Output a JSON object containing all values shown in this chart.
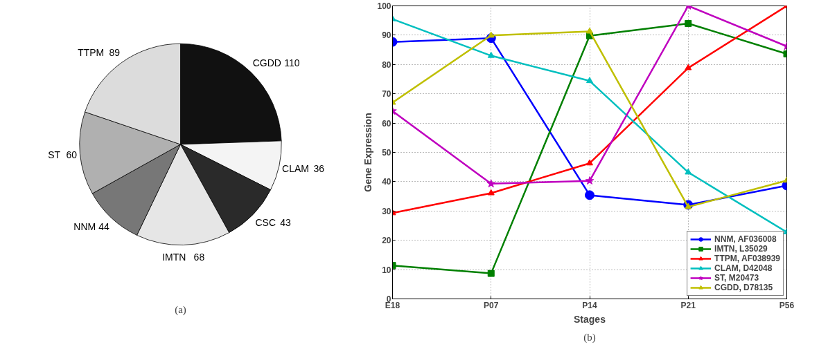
{
  "chart_data": [
    {
      "type": "pie",
      "categories": [
        "CGDD",
        "CLAM",
        "CSC",
        "IMTN",
        "NNM",
        "ST",
        "TTPM"
      ],
      "values": [
        110,
        36,
        43,
        68,
        44,
        60,
        89
      ],
      "colors": [
        "#111111",
        "#f4f4f4",
        "#2a2a2a",
        "#e6e6e6",
        "#777777",
        "#b0b0b0",
        "#dcdcdc"
      ],
      "data_labels": true,
      "legend": false,
      "annotations": [
        "(a)"
      ]
    },
    {
      "type": "line",
      "categories": [
        "E18",
        "P07",
        "P14",
        "P21",
        "P56"
      ],
      "xlabel": "Stages",
      "ylabel": "Gene Expression",
      "ylim": [
        0,
        100
      ],
      "yticks": [
        0,
        10,
        20,
        30,
        40,
        50,
        60,
        70,
        80,
        90,
        100
      ],
      "grid": true,
      "legend": "bottom right",
      "line_style": "solid",
      "series": [
        {
          "name": "NNM, AF036008",
          "color": "#0000ff",
          "marker": "circle",
          "values": [
            87.7,
            89,
            35.4,
            32.1,
            38.7
          ]
        },
        {
          "name": "IMTN, L35029",
          "color": "#008000",
          "marker": "square",
          "values": [
            11.4,
            8.7,
            89.8,
            94,
            83.6
          ]
        },
        {
          "name": "TTPM, AF038939",
          "color": "#ff0000",
          "marker": "triangle",
          "values": [
            29.3,
            36.1,
            46.3,
            78.8,
            100
          ]
        },
        {
          "name": "CLAM, D42048",
          "color": "#00bfbf",
          "marker": "triangle",
          "values": [
            95.5,
            83,
            74.4,
            43.2,
            22.8
          ]
        },
        {
          "name": "ST, M20473",
          "color": "#bf00bf",
          "marker": "star",
          "values": [
            64.1,
            39.3,
            40.3,
            100,
            86.2
          ]
        },
        {
          "name": "CGDD, D78135",
          "color": "#bfbf00",
          "marker": "triangle",
          "values": [
            67,
            89.9,
            91.3,
            31.4,
            40.4
          ]
        }
      ],
      "annotations": [
        "(b)"
      ]
    }
  ]
}
